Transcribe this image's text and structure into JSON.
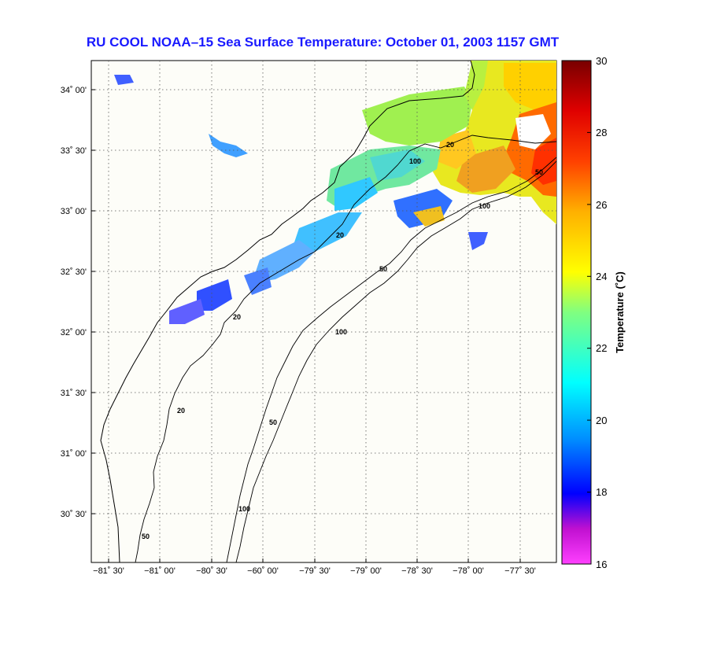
{
  "title": "RU COOL  NOAA–15  Sea Surface Temperature:  October 01, 2003 1157 GMT",
  "map": {
    "lat_ticks": [
      "34˚ 00'",
      "33˚ 30'",
      "33˚ 00'",
      "32˚ 30'",
      "32˚ 00'",
      "31˚ 30'",
      "31˚ 00'",
      "30˚ 30'"
    ],
    "lon_ticks": [
      "−81˚ 30'",
      "−81˚ 00'",
      "−80˚ 30'",
      "−60˚ 00'",
      "−79˚ 30'",
      "−79˚ 00'",
      "−78˚ 30'",
      "−78˚ 00'",
      "−77˚ 30'"
    ],
    "contour_labels": [
      "20",
      "50",
      "100",
      "20",
      "50",
      "100",
      "20",
      "50",
      "100",
      "20",
      "50",
      "100"
    ]
  },
  "colorbar": {
    "label": "Temperature (˚C)",
    "ticks": [
      "30",
      "28",
      "26",
      "24",
      "22",
      "20",
      "18",
      "16"
    ],
    "range": [
      16,
      30
    ]
  },
  "colors": {
    "title": "#1a1aff",
    "background": "#fdfdf8"
  }
}
